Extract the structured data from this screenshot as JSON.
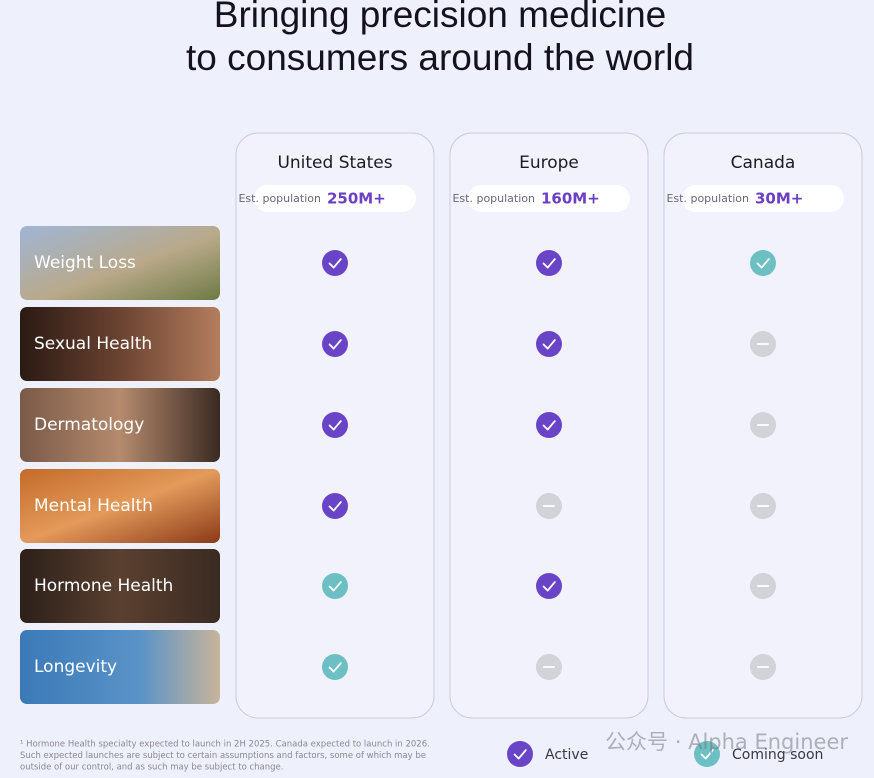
{
  "title_lines": [
    "Bringing precision medicine",
    "to consumers around the world"
  ],
  "columns": [
    {
      "name": "United States",
      "population_label": "Est. population",
      "population": "250M+"
    },
    {
      "name": "Europe",
      "population_label": "Est. population",
      "population": "160M+"
    },
    {
      "name": "Canada",
      "population_label": "Est. population",
      "population": "30M+"
    }
  ],
  "rows": [
    "Weight Loss",
    "Sexual Health",
    "Dermatology",
    "Mental Health",
    "Hormone Health",
    "Longevity"
  ],
  "status": [
    [
      "active",
      "active",
      "coming"
    ],
    [
      "active",
      "active",
      "none"
    ],
    [
      "active",
      "active",
      "none"
    ],
    [
      "active",
      "none",
      "none"
    ],
    [
      "coming",
      "active",
      "none"
    ],
    [
      "coming",
      "none",
      "none"
    ]
  ],
  "legend": [
    {
      "status": "active",
      "label": "Active"
    },
    {
      "status": "coming",
      "label": "Coming soon"
    }
  ],
  "footnote": [
    "¹ Hormone Health specialty expected to launch in 2H 2025. Canada expected to launch in 2026.",
    "Such expected launches are subject to certain assumptions and factors, some of which may be",
    "outside of our control, and as such may be subject to change."
  ],
  "watermark": "公众号 · Alpha Engineer"
}
